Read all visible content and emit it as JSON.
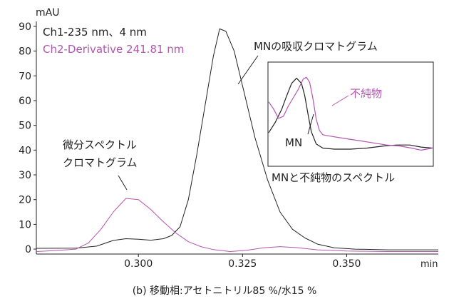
{
  "chart_data": {
    "type": "line",
    "ylabel": "mAU",
    "xlabel": "min",
    "xlim": [
      0.2755,
      0.372
    ],
    "ylim": [
      -2,
      92
    ],
    "xticks": [
      0.3,
      0.325,
      0.35
    ],
    "xtick_labels": [
      "0.300",
      "0.325",
      "0.350"
    ],
    "yticks": [
      0,
      10,
      20,
      30,
      40,
      50,
      60,
      70,
      80,
      90
    ],
    "ytick_labels": [
      "0",
      "10",
      "20",
      "30",
      "40",
      "50",
      "60",
      "70",
      "80",
      "90"
    ],
    "legend_placement": "top-left",
    "series": [
      {
        "name": "Ch1-235 nm、4 nm",
        "color": "#222222",
        "points": [
          [
            0.2755,
            0.3
          ],
          [
            0.285,
            0.4
          ],
          [
            0.29,
            1.2
          ],
          [
            0.294,
            3.5
          ],
          [
            0.297,
            4.2
          ],
          [
            0.3,
            4.0
          ],
          [
            0.303,
            3.6
          ],
          [
            0.306,
            4.2
          ],
          [
            0.308,
            5.5
          ],
          [
            0.31,
            9
          ],
          [
            0.312,
            20
          ],
          [
            0.314,
            38
          ],
          [
            0.316,
            58
          ],
          [
            0.318,
            78
          ],
          [
            0.3195,
            89
          ],
          [
            0.321,
            88
          ],
          [
            0.323,
            80
          ],
          [
            0.325,
            66
          ],
          [
            0.328,
            45
          ],
          [
            0.331,
            28
          ],
          [
            0.334,
            15
          ],
          [
            0.337,
            8
          ],
          [
            0.34,
            4.5
          ],
          [
            0.343,
            2
          ],
          [
            0.347,
            0.5
          ],
          [
            0.352,
            0
          ],
          [
            0.36,
            -0.3
          ],
          [
            0.372,
            -0.3
          ]
        ]
      },
      {
        "name": "Ch2-Derivative 241.81 nm",
        "color": "#b455b0",
        "points": [
          [
            0.2755,
            -1
          ],
          [
            0.28,
            -0.6
          ],
          [
            0.285,
            0
          ],
          [
            0.288,
            2.5
          ],
          [
            0.291,
            8
          ],
          [
            0.294,
            15
          ],
          [
            0.297,
            20.5
          ],
          [
            0.3,
            20
          ],
          [
            0.303,
            16
          ],
          [
            0.306,
            11
          ],
          [
            0.309,
            6.5
          ],
          [
            0.312,
            3
          ],
          [
            0.315,
            1
          ],
          [
            0.318,
            -0.2
          ],
          [
            0.322,
            -1
          ],
          [
            0.326,
            -0.5
          ],
          [
            0.33,
            0.5
          ],
          [
            0.334,
            1
          ],
          [
            0.338,
            0.6
          ],
          [
            0.343,
            -0.3
          ],
          [
            0.35,
            -0.8
          ],
          [
            0.36,
            -1
          ],
          [
            0.372,
            -1
          ]
        ]
      }
    ],
    "inset": {
      "title": "MNと不純物のスペクトル",
      "series": [
        {
          "name": "MN",
          "color": "#222222",
          "points": [
            [
              0,
              0.32
            ],
            [
              0.04,
              0.42
            ],
            [
              0.08,
              0.55
            ],
            [
              0.11,
              0.68
            ],
            [
              0.14,
              0.8
            ],
            [
              0.17,
              0.85
            ],
            [
              0.2,
              0.8
            ],
            [
              0.22,
              0.68
            ],
            [
              0.24,
              0.5
            ],
            [
              0.26,
              0.33
            ],
            [
              0.29,
              0.21
            ],
            [
              0.33,
              0.17
            ],
            [
              0.4,
              0.16
            ],
            [
              0.5,
              0.16
            ],
            [
              0.6,
              0.17
            ],
            [
              0.7,
              0.19
            ],
            [
              0.78,
              0.2
            ],
            [
              0.86,
              0.2
            ],
            [
              0.93,
              0.18
            ],
            [
              1.0,
              0.17
            ]
          ]
        },
        {
          "name": "不純物",
          "color": "#b455b0",
          "points": [
            [
              0,
              0.62
            ],
            [
              0.03,
              0.55
            ],
            [
              0.06,
              0.46
            ],
            [
              0.09,
              0.48
            ],
            [
              0.12,
              0.58
            ],
            [
              0.15,
              0.66
            ],
            [
              0.18,
              0.74
            ],
            [
              0.21,
              0.84
            ],
            [
              0.23,
              0.86
            ],
            [
              0.25,
              0.81
            ],
            [
              0.27,
              0.65
            ],
            [
              0.29,
              0.45
            ],
            [
              0.31,
              0.34
            ],
            [
              0.33,
              0.3
            ],
            [
              0.36,
              0.29
            ],
            [
              0.4,
              0.28
            ],
            [
              0.48,
              0.26
            ],
            [
              0.56,
              0.24
            ],
            [
              0.64,
              0.22
            ],
            [
              0.72,
              0.2
            ],
            [
              0.8,
              0.19
            ],
            [
              0.87,
              0.17
            ],
            [
              0.93,
              0.15
            ],
            [
              1.0,
              0.17
            ]
          ]
        }
      ]
    },
    "annotations": [
      {
        "id": "mn-chrom",
        "text": "MNの吸収クロマトグラム"
      },
      {
        "id": "deriv-line1",
        "text": "微分スペクトル"
      },
      {
        "id": "deriv-line2",
        "text": "クロマトグラム"
      }
    ],
    "caption": "(b) 移動相:アセトニトリル85 %/水15 %"
  }
}
